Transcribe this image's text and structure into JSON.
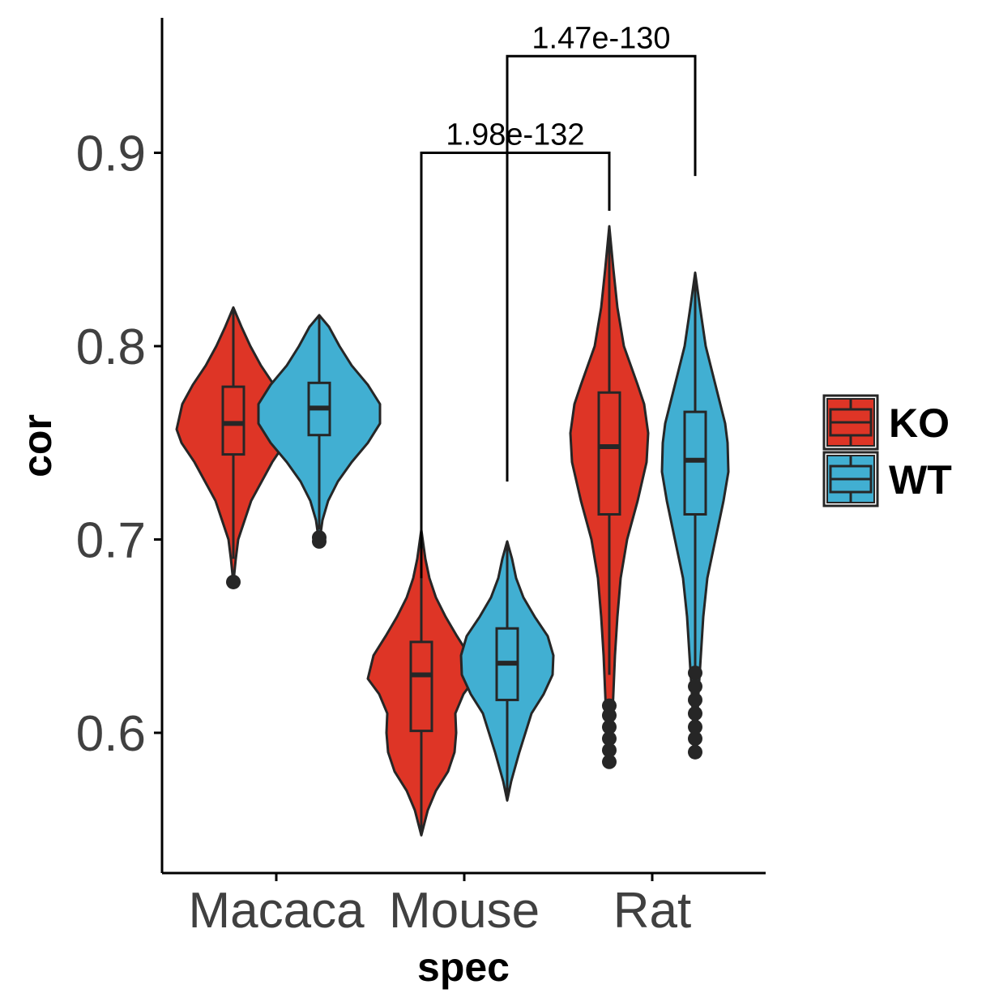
{
  "chart_data": {
    "type": "violin",
    "xlabel": "spec",
    "ylabel": "cor",
    "ylim": [
      0.53,
      0.97
    ],
    "y_ticks": [
      0.6,
      0.7,
      0.8,
      0.9
    ],
    "y_tick_labels": [
      "0.6",
      "0.7",
      "0.8",
      "0.9"
    ],
    "categories": [
      "Macaca",
      "Mouse",
      "Rat"
    ],
    "legend": {
      "position": "right"
    },
    "colors": {
      "KO": "#de3526",
      "WT": "#41afd2",
      "outline": "#262626",
      "axis": "#000000"
    },
    "series": [
      {
        "name": "KO",
        "groups": [
          {
            "category": "Macaca",
            "violin": [
              [
                0.6775,
                0.0
              ],
              [
                0.69,
                0.003
              ],
              [
                0.7,
                0.006
              ],
              [
                0.72,
                0.022
              ],
              [
                0.74,
                0.048
              ],
              [
                0.75,
                0.064
              ],
              [
                0.757,
                0.07
              ],
              [
                0.77,
                0.063
              ],
              [
                0.78,
                0.05
              ],
              [
                0.79,
                0.034
              ],
              [
                0.8,
                0.021
              ],
              [
                0.81,
                0.01
              ],
              [
                0.82,
                0.0
              ]
            ],
            "box": {
              "min": 0.69,
              "q1": 0.744,
              "median": 0.76,
              "q3": 0.779,
              "max": 0.82
            },
            "outliers": [
              0.678
            ]
          },
          {
            "category": "Mouse",
            "violin": [
              [
                0.547,
                0.0
              ],
              [
                0.56,
                0.008
              ],
              [
                0.57,
                0.018
              ],
              [
                0.58,
                0.033
              ],
              [
                0.59,
                0.041
              ],
              [
                0.6,
                0.043
              ],
              [
                0.61,
                0.042
              ],
              [
                0.62,
                0.052
              ],
              [
                0.628,
                0.066
              ],
              [
                0.64,
                0.059
              ],
              [
                0.65,
                0.044
              ],
              [
                0.66,
                0.03
              ],
              [
                0.67,
                0.018
              ],
              [
                0.68,
                0.01
              ],
              [
                0.69,
                0.005
              ],
              [
                0.705,
                0.0
              ]
            ],
            "box": {
              "min": 0.547,
              "q1": 0.601,
              "median": 0.63,
              "q3": 0.647,
              "max": 0.705
            },
            "outliers": []
          },
          {
            "category": "Rat",
            "violin": [
              [
                0.585,
                0.0
              ],
              [
                0.6,
                0.003
              ],
              [
                0.62,
                0.005
              ],
              [
                0.64,
                0.007
              ],
              [
                0.66,
                0.01
              ],
              [
                0.68,
                0.014
              ],
              [
                0.7,
                0.022
              ],
              [
                0.72,
                0.035
              ],
              [
                0.74,
                0.046
              ],
              [
                0.755,
                0.048
              ],
              [
                0.77,
                0.043
              ],
              [
                0.78,
                0.035
              ],
              [
                0.8,
                0.018
              ],
              [
                0.82,
                0.01
              ],
              [
                0.84,
                0.005
              ],
              [
                0.862,
                0.0
              ]
            ],
            "box": {
              "min": 0.63,
              "q1": 0.713,
              "median": 0.748,
              "q3": 0.776,
              "max": 0.862
            },
            "outliers": [
              0.585,
              0.591,
              0.597,
              0.603,
              0.609,
              0.614
            ]
          }
        ]
      },
      {
        "name": "WT",
        "groups": [
          {
            "category": "Macaca",
            "violin": [
              [
                0.698,
                0.0
              ],
              [
                0.71,
                0.004
              ],
              [
                0.72,
                0.011
              ],
              [
                0.73,
                0.023
              ],
              [
                0.74,
                0.04
              ],
              [
                0.75,
                0.06
              ],
              [
                0.76,
                0.075
              ],
              [
                0.77,
                0.075
              ],
              [
                0.78,
                0.06
              ],
              [
                0.79,
                0.04
              ],
              [
                0.8,
                0.025
              ],
              [
                0.81,
                0.012
              ],
              [
                0.816,
                0.0
              ]
            ],
            "box": {
              "min": 0.705,
              "q1": 0.754,
              "median": 0.768,
              "q3": 0.781,
              "max": 0.816
            },
            "outliers": [
              0.699,
              0.701
            ]
          },
          {
            "category": "Mouse",
            "violin": [
              [
                0.565,
                0.0
              ],
              [
                0.575,
                0.005
              ],
              [
                0.59,
                0.015
              ],
              [
                0.61,
                0.03
              ],
              [
                0.62,
                0.045
              ],
              [
                0.63,
                0.056
              ],
              [
                0.64,
                0.057
              ],
              [
                0.65,
                0.05
              ],
              [
                0.66,
                0.034
              ],
              [
                0.67,
                0.02
              ],
              [
                0.68,
                0.011
              ],
              [
                0.69,
                0.006
              ],
              [
                0.699,
                0.0
              ]
            ],
            "box": {
              "min": 0.565,
              "q1": 0.617,
              "median": 0.636,
              "q3": 0.654,
              "max": 0.699
            },
            "outliers": []
          },
          {
            "category": "Rat",
            "violin": [
              [
                0.59,
                0.0
              ],
              [
                0.6,
                0.002
              ],
              [
                0.62,
                0.004
              ],
              [
                0.64,
                0.007
              ],
              [
                0.66,
                0.01
              ],
              [
                0.68,
                0.015
              ],
              [
                0.7,
                0.025
              ],
              [
                0.72,
                0.035
              ],
              [
                0.735,
                0.041
              ],
              [
                0.75,
                0.04
              ],
              [
                0.76,
                0.037
              ],
              [
                0.78,
                0.025
              ],
              [
                0.8,
                0.013
              ],
              [
                0.82,
                0.006
              ],
              [
                0.838,
                0.0
              ]
            ],
            "box": {
              "min": 0.633,
              "q1": 0.713,
              "median": 0.741,
              "q3": 0.766,
              "max": 0.838
            },
            "outliers": [
              0.59,
              0.597,
              0.603,
              0.61,
              0.617,
              0.624,
              0.631
            ]
          }
        ]
      }
    ],
    "comparisons": [
      {
        "label": "1.98e-132",
        "from": {
          "category": "Mouse",
          "series": "KO"
        },
        "to": {
          "category": "Rat",
          "series": "KO"
        },
        "y": 0.9,
        "y_start": 0.68,
        "y_end": 0.87
      },
      {
        "label": "1.47e-130",
        "from": {
          "category": "Mouse",
          "series": "WT"
        },
        "to": {
          "category": "Rat",
          "series": "WT"
        },
        "y": 0.95,
        "y_start": 0.73,
        "y_end": 0.888
      }
    ]
  }
}
